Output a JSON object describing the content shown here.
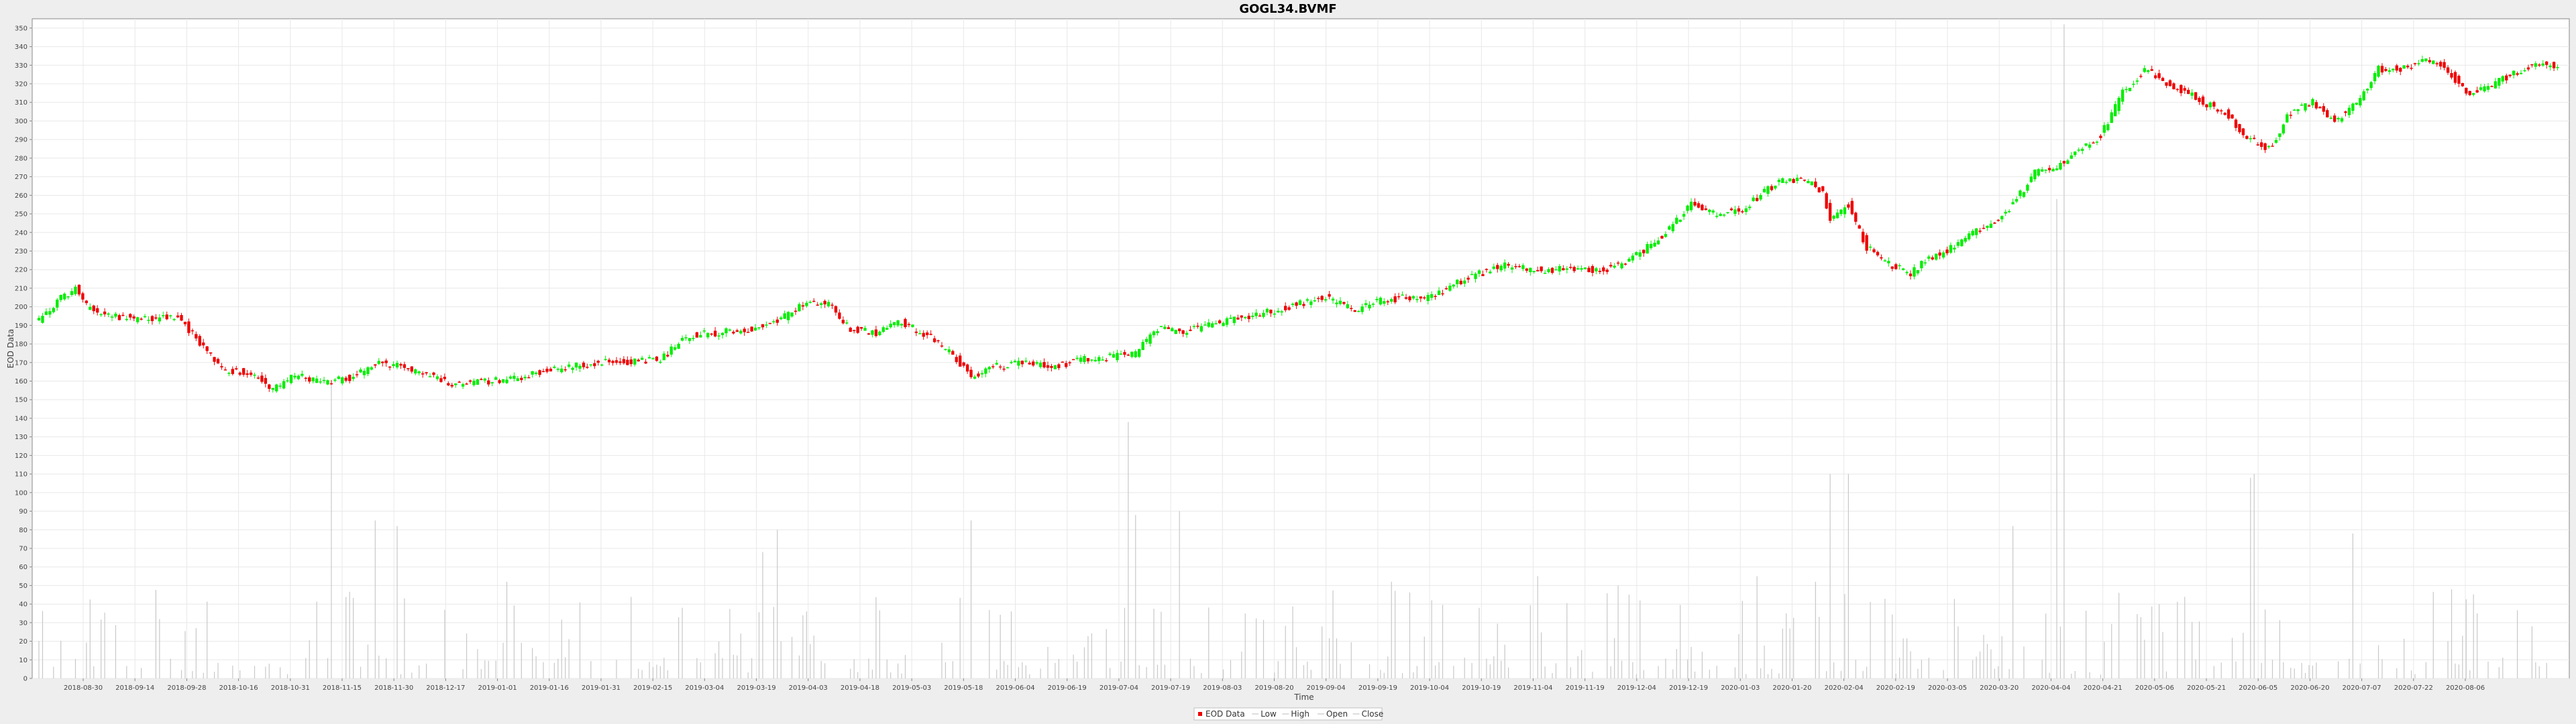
{
  "chart_data": {
    "type": "candlestick",
    "title": "GOGL34.BVMF",
    "xlabel": "Time",
    "ylabel": "EOD Data",
    "ylim": [
      0,
      355
    ],
    "y_ticks": [
      0,
      10,
      20,
      30,
      40,
      50,
      60,
      70,
      80,
      90,
      100,
      110,
      120,
      130,
      140,
      150,
      160,
      170,
      180,
      190,
      200,
      210,
      220,
      230,
      240,
      250,
      260,
      270,
      280,
      290,
      300,
      310,
      320,
      330,
      340,
      350
    ],
    "x_ticks": [
      "2018-08-30",
      "2018-09-14",
      "2018-09-28",
      "2018-10-16",
      "2018-10-31",
      "2018-11-15",
      "2018-11-30",
      "2018-12-17",
      "2019-01-01",
      "2019-01-16",
      "2019-01-31",
      "2019-02-15",
      "2019-03-04",
      "2019-03-19",
      "2019-04-03",
      "2019-04-18",
      "2019-05-03",
      "2019-05-18",
      "2019-06-04",
      "2019-06-19",
      "2019-07-04",
      "2019-07-19",
      "2019-08-03",
      "2019-08-20",
      "2019-09-04",
      "2019-09-19",
      "2019-10-04",
      "2019-10-19",
      "2019-11-04",
      "2019-11-19",
      "2019-12-04",
      "2019-12-19",
      "2020-01-03",
      "2020-01-20",
      "2020-02-04",
      "2020-02-19",
      "2020-03-05",
      "2020-03-20",
      "2020-04-04",
      "2020-04-21",
      "2020-05-06",
      "2020-05-21",
      "2020-06-05",
      "2020-06-20",
      "2020-07-07",
      "2020-07-22",
      "2020-08-06"
    ],
    "close_anchors": [
      [
        0,
        192
      ],
      [
        6,
        205
      ],
      [
        10,
        210
      ],
      [
        13,
        200
      ],
      [
        18,
        196
      ],
      [
        28,
        193
      ],
      [
        38,
        195
      ],
      [
        45,
        178
      ],
      [
        50,
        166
      ],
      [
        58,
        165
      ],
      [
        64,
        155
      ],
      [
        70,
        163
      ],
      [
        78,
        159
      ],
      [
        85,
        162
      ],
      [
        94,
        170
      ],
      [
        100,
        167
      ],
      [
        108,
        163
      ],
      [
        114,
        158
      ],
      [
        122,
        160
      ],
      [
        130,
        161
      ],
      [
        138,
        165
      ],
      [
        146,
        168
      ],
      [
        154,
        170
      ],
      [
        162,
        170
      ],
      [
        170,
        172
      ],
      [
        178,
        185
      ],
      [
        186,
        186
      ],
      [
        194,
        188
      ],
      [
        202,
        192
      ],
      [
        210,
        202
      ],
      [
        216,
        202
      ],
      [
        222,
        188
      ],
      [
        230,
        186
      ],
      [
        236,
        192
      ],
      [
        244,
        183
      ],
      [
        250,
        174
      ],
      [
        255,
        163
      ],
      [
        262,
        168
      ],
      [
        270,
        170
      ],
      [
        278,
        168
      ],
      [
        286,
        172
      ],
      [
        294,
        173
      ],
      [
        300,
        175
      ],
      [
        306,
        188
      ],
      [
        312,
        186
      ],
      [
        320,
        190
      ],
      [
        328,
        194
      ],
      [
        336,
        197
      ],
      [
        344,
        201
      ],
      [
        352,
        205
      ],
      [
        360,
        198
      ],
      [
        366,
        203
      ],
      [
        374,
        205
      ],
      [
        380,
        205
      ],
      [
        390,
        215
      ],
      [
        400,
        222
      ],
      [
        410,
        220
      ],
      [
        420,
        220
      ],
      [
        428,
        220
      ],
      [
        434,
        224
      ],
      [
        440,
        232
      ],
      [
        446,
        242
      ],
      [
        452,
        255
      ],
      [
        458,
        250
      ],
      [
        466,
        252
      ],
      [
        472,
        262
      ],
      [
        478,
        269
      ],
      [
        484,
        267
      ],
      [
        488,
        262
      ],
      [
        490,
        246
      ],
      [
        495,
        255
      ],
      [
        500,
        232
      ],
      [
        506,
        223
      ],
      [
        512,
        218
      ],
      [
        516,
        225
      ],
      [
        522,
        230
      ],
      [
        528,
        238
      ],
      [
        534,
        245
      ],
      [
        540,
        255
      ],
      [
        546,
        272
      ],
      [
        552,
        275
      ],
      [
        558,
        285
      ],
      [
        564,
        292
      ],
      [
        570,
        315
      ],
      [
        576,
        328
      ],
      [
        582,
        320
      ],
      [
        588,
        315
      ],
      [
        592,
        310
      ],
      [
        598,
        305
      ],
      [
        604,
        290
      ],
      [
        610,
        285
      ],
      [
        616,
        305
      ],
      [
        622,
        310
      ],
      [
        628,
        300
      ],
      [
        634,
        310
      ],
      [
        640,
        328
      ],
      [
        646,
        328
      ],
      [
        652,
        332
      ],
      [
        658,
        330
      ],
      [
        664,
        315
      ],
      [
        670,
        318
      ],
      [
        676,
        325
      ],
      [
        682,
        330
      ]
    ],
    "volume_spikes": [
      [
        80,
        160
      ],
      [
        92,
        85
      ],
      [
        98,
        82
      ],
      [
        128,
        52
      ],
      [
        176,
        38
      ],
      [
        198,
        68
      ],
      [
        202,
        80
      ],
      [
        255,
        85
      ],
      [
        298,
        138
      ],
      [
        300,
        88
      ],
      [
        312,
        90
      ],
      [
        370,
        52
      ],
      [
        410,
        55
      ],
      [
        432,
        50
      ],
      [
        470,
        55
      ],
      [
        486,
        52
      ],
      [
        490,
        110
      ],
      [
        495,
        110
      ],
      [
        540,
        82
      ],
      [
        552,
        258
      ],
      [
        554,
        352
      ],
      [
        605,
        108
      ],
      [
        606,
        110
      ],
      [
        633,
        78
      ],
      [
        660,
        48
      ]
    ],
    "legend": [
      "EOD Data",
      "Low",
      "High",
      "Open",
      "Close"
    ],
    "legend_placement": "bottom-center",
    "grid": true,
    "colors": {
      "up": "#00ee00",
      "down": "#ee0000",
      "volume": "#c8c8c8",
      "grid": "#e8e8e8",
      "legend_box": "#c0c0c0"
    }
  }
}
